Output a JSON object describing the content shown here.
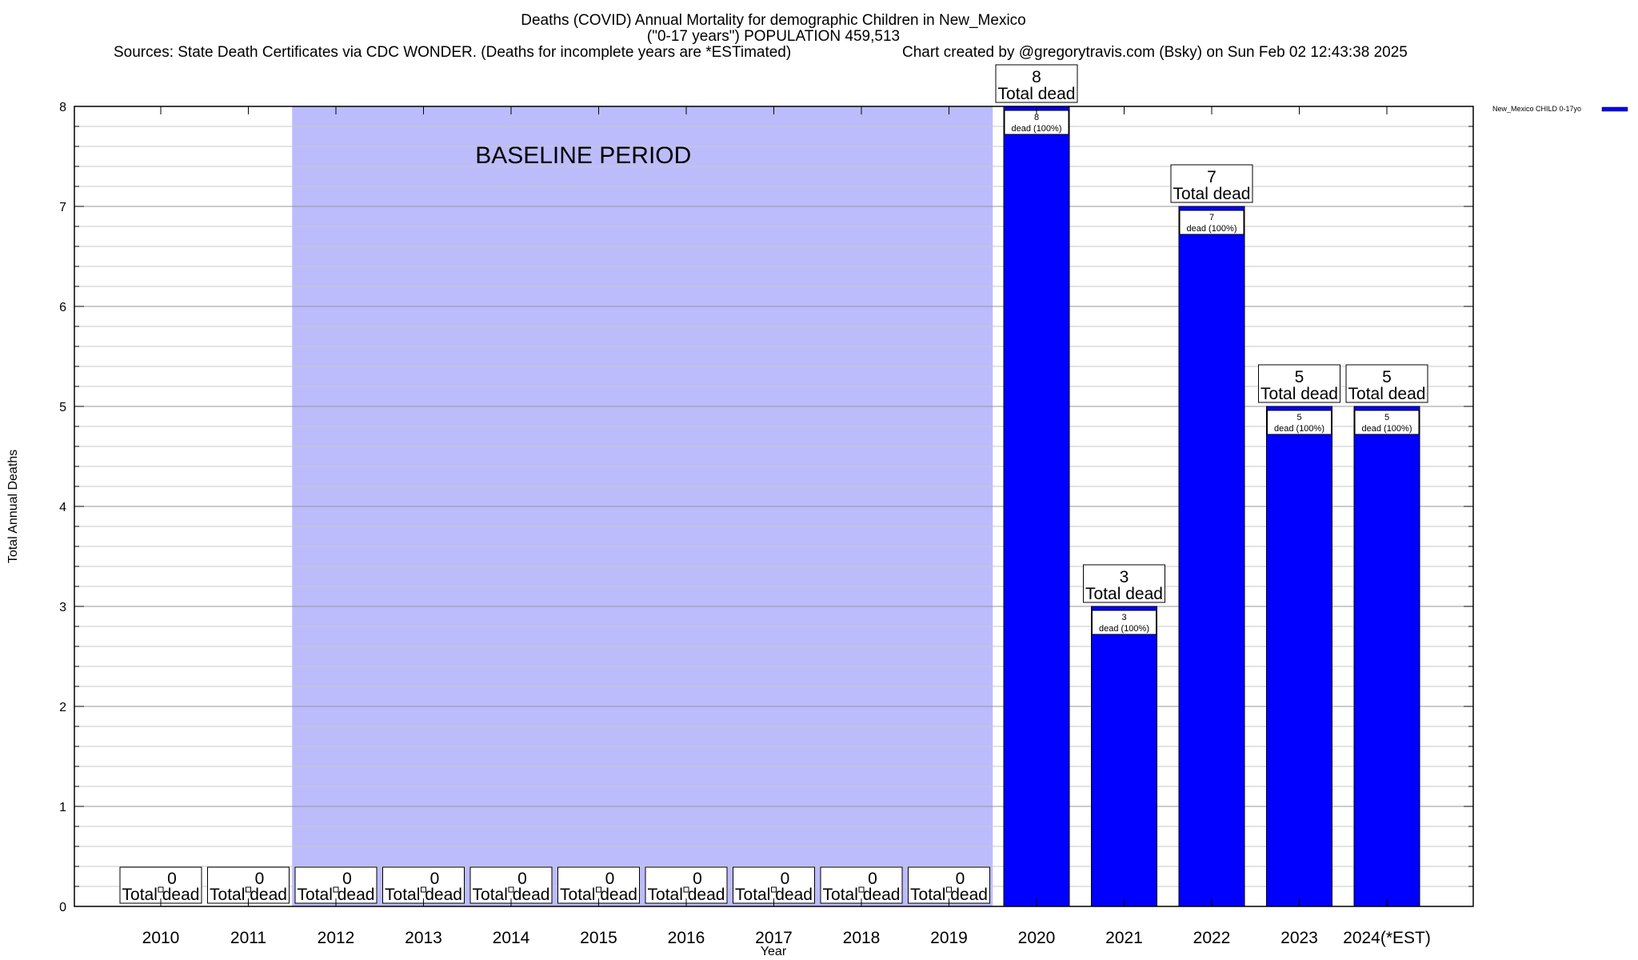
{
  "chart_data": {
    "type": "bar",
    "title": "Deaths (COVID) Annual Mortality for demographic Children in New_Mexico",
    "subtitle": "(\"0-17 years\") POPULATION 459,513",
    "sources": "Sources: State Death Certificates via CDC WONDER. (Deaths for incomplete years are *ESTimated)",
    "credit": "Chart created by @gregorytravis.com (Bsky) on Sun Feb 02 12:43:38 2025",
    "xlabel": "Year",
    "ylabel": "Total Annual Deaths",
    "ylim": [
      0,
      8
    ],
    "yticks": [
      "0",
      "1",
      "2",
      "3",
      "4",
      "5",
      "6",
      "7",
      "8"
    ],
    "categories": [
      "2010",
      "2011",
      "2012",
      "2013",
      "2014",
      "2015",
      "2016",
      "2017",
      "2018",
      "2019",
      "2020",
      "2021",
      "2022",
      "2023",
      "2024(*EST)"
    ],
    "series": [
      {
        "name": "New_Mexico CHILD 0-17yo",
        "color": "#0000ff",
        "values": [
          0,
          0,
          0,
          0,
          0,
          0,
          0,
          0,
          0,
          0,
          8,
          3,
          7,
          5,
          5
        ]
      }
    ],
    "total_label_suffix": "Total dead",
    "segment_label_suffix": "dead (100%)",
    "baseline": {
      "label": "BASELINE PERIOD",
      "from": "2012",
      "to": "2019",
      "color": "#bcbcfc"
    },
    "grid": true,
    "legend_position": "top-right"
  }
}
